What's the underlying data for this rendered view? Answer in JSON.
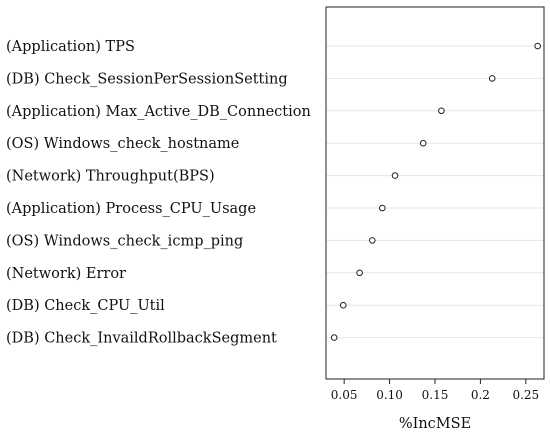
{
  "chart_data": {
    "type": "scatter",
    "title": "",
    "xlabel": "%IncMSE",
    "ylabel": "",
    "xlim": [
      0.03,
      0.27
    ],
    "xticks": [
      0.05,
      0.1,
      0.15,
      0.2,
      0.25
    ],
    "xtick_labels": [
      "0.05",
      "0.10",
      "0.15",
      "0.2",
      "0.25"
    ],
    "grid": true,
    "categories": [
      "(Application) TPS",
      "(DB) Check_SessionPerSessionSetting",
      "(Application) Max_Active_DB_Connection",
      "(OS) Windows_check_hostname",
      "(Network) Throughput(BPS)",
      "(Application) Process_CPU_Usage",
      "(OS) Windows_check_icmp_ping",
      "(Network) Error",
      "(DB) Check_CPU_Util",
      "(DB) Check_InvaildRollbackSegment"
    ],
    "values": [
      0.263,
      0.213,
      0.157,
      0.137,
      0.106,
      0.092,
      0.081,
      0.067,
      0.049,
      0.039
    ]
  }
}
